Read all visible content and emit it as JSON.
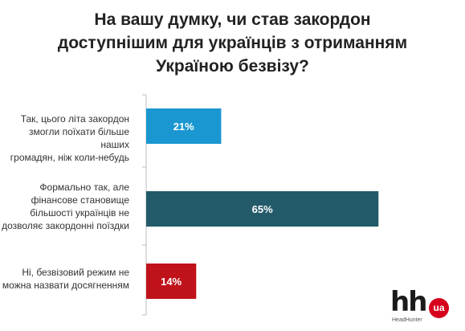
{
  "chart_data": {
    "type": "bar",
    "orientation": "horizontal",
    "title": [
      "На вашу думку, чи став закордон",
      "доступнішим для українців з отриманням",
      "Україною безвізу?"
    ],
    "categories": [
      [
        "Так, цього літа закордон",
        "змогли поїхати більше наших",
        "громадян, ніж коли-небудь"
      ],
      [
        "Формально так, але",
        "фінансове становище",
        "більшості українців не",
        "дозволяє закордонні поїздки"
      ],
      [
        "Ні, безвізовий режим не",
        "можна назвати досягненням"
      ]
    ],
    "values": [
      21,
      65,
      14
    ],
    "data_labels": [
      "21%",
      "65%",
      "14%"
    ],
    "colors": [
      "#1a97d1",
      "#225a6a",
      "#c0121a"
    ],
    "xlim": [
      0,
      100
    ],
    "grid": false,
    "legend": "none"
  },
  "logo": {
    "mark": "hh",
    "badge": "ua",
    "caption": "HeadHunter"
  }
}
